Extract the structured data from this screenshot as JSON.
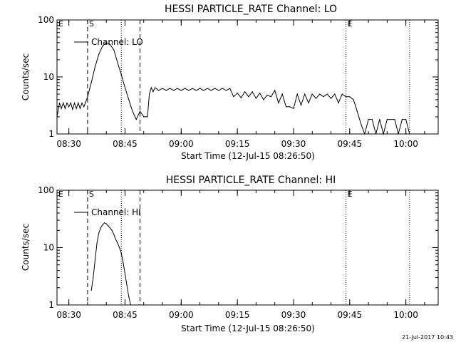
{
  "chart_data": [
    {
      "type": "line",
      "title": "HESSI PARTICLE_RATE Channel: LO",
      "xlabel": "Start Time (12-Jul-15 08:26:50)",
      "ylabel": "Counts/sec",
      "yscale": "log",
      "ylim": [
        1,
        100
      ],
      "xlim_minutes_after_0826_50": [
        0,
        101.8
      ],
      "xticks": [
        "08:30",
        "08:45",
        "09:00",
        "09:15",
        "09:30",
        "09:45",
        "10:00"
      ],
      "yticks": [
        "1",
        "10",
        "100"
      ],
      "legend": {
        "position": "top-left",
        "entries": [
          "Channel: LO"
        ]
      },
      "markers": [
        {
          "label": "E",
          "style": "solid",
          "at": "08:26:50"
        },
        {
          "label": "S",
          "style": "dashed",
          "at": "08:35"
        },
        {
          "label": "",
          "style": "dotted",
          "at": "08:44"
        },
        {
          "label": "",
          "style": "dashed",
          "at": "08:49"
        },
        {
          "label": "E",
          "style": "dotted",
          "at": "09:44"
        },
        {
          "label": "",
          "style": "dotted",
          "at": "10:01"
        }
      ],
      "series": [
        {
          "name": "Channel: LO",
          "x": [
            "08:26:50",
            "08:27:30",
            "08:28:00",
            "08:28:30",
            "08:29:00",
            "08:29:30",
            "08:30:00",
            "08:30:30",
            "08:31:00",
            "08:31:30",
            "08:32:00",
            "08:32:30",
            "08:33:00",
            "08:33:30",
            "08:34:00",
            "08:34:30",
            "08:35:00",
            "08:36:00",
            "08:37:00",
            "08:38:00",
            "08:39:00",
            "08:40:00",
            "08:41:00",
            "08:42:00",
            "08:43:00",
            "08:44:00",
            "08:45:00",
            "08:46:00",
            "08:47:00",
            "08:48:00",
            "08:49:00",
            "08:50:00",
            "08:51:00",
            "08:51:30",
            "08:52:00",
            "08:52:30",
            "08:53:00",
            "08:54:00",
            "08:55:00",
            "08:56:00",
            "08:57:00",
            "08:58:00",
            "08:59:00",
            "09:00:00",
            "09:01:00",
            "09:02:00",
            "09:03:00",
            "09:04:00",
            "09:05:00",
            "09:06:00",
            "09:07:00",
            "09:08:00",
            "09:09:00",
            "09:10:00",
            "09:11:00",
            "09:12:00",
            "09:13:00",
            "09:14:00",
            "09:15:00",
            "09:16:00",
            "09:17:00",
            "09:18:00",
            "09:19:00",
            "09:20:00",
            "09:21:00",
            "09:22:00",
            "09:23:00",
            "09:24:00",
            "09:25:00",
            "09:26:00",
            "09:27:00",
            "09:28:00",
            "09:29:00",
            "09:30:00",
            "09:31:00",
            "09:32:00",
            "09:33:00",
            "09:34:00",
            "09:35:00",
            "09:36:00",
            "09:37:00",
            "09:38:00",
            "09:39:00",
            "09:40:00",
            "09:41:00",
            "09:42:00",
            "09:43:00",
            "09:44:00",
            "09:45:00",
            "09:46:00",
            "09:47:00",
            "09:48:00",
            "09:49:00",
            "09:50:00",
            "09:51:00",
            "09:52:00",
            "09:53:00",
            "09:54:00",
            "09:55:00",
            "09:56:00",
            "09:57:00",
            "09:58:00",
            "09:59:00",
            "10:00:00",
            "10:01:00"
          ],
          "values": [
            2,
            3.5,
            2.8,
            3.5,
            2.8,
            3.5,
            3,
            3.5,
            2.7,
            3.5,
            2.8,
            3.5,
            2.8,
            3.5,
            3,
            3.6,
            4.5,
            8,
            15,
            25,
            35,
            40,
            37,
            30,
            18,
            11,
            6.5,
            4,
            2.5,
            1.8,
            2.5,
            2,
            2,
            5,
            6.5,
            5.5,
            6.5,
            5.8,
            6.3,
            5.8,
            6.3,
            5.8,
            6.3,
            5.8,
            6.3,
            5.8,
            6.3,
            5.8,
            6.3,
            5.8,
            6.3,
            5.8,
            6.3,
            5.8,
            6.3,
            5.8,
            6.3,
            4.5,
            5.2,
            4.3,
            5.5,
            4.5,
            5.5,
            4.2,
            5.2,
            4,
            4.8,
            4.5,
            5.8,
            3.5,
            5,
            3,
            3,
            2.8,
            5,
            3.2,
            5,
            3.5,
            5,
            4.2,
            5,
            4.5,
            5,
            4.2,
            5,
            3.5,
            5,
            4.5,
            4.5,
            4,
            2.5,
            1.5,
            1,
            1.8,
            1.8,
            1,
            1.8,
            1,
            1.8,
            1.8,
            1.8,
            1,
            1.8,
            1.8,
            1
          ]
        }
      ]
    },
    {
      "type": "line",
      "title": "HESSI PARTICLE_RATE Channel: HI",
      "xlabel": "Start Time (12-Jul-15 08:26:50)",
      "ylabel": "Counts/sec",
      "yscale": "log",
      "ylim": [
        1,
        100
      ],
      "xlim_minutes_after_0826_50": [
        0,
        101.8
      ],
      "xticks": [
        "08:30",
        "08:45",
        "09:00",
        "09:15",
        "09:30",
        "09:45",
        "10:00"
      ],
      "yticks": [
        "1",
        "10",
        "100"
      ],
      "legend": {
        "position": "top-left",
        "entries": [
          "Channel: HI"
        ]
      },
      "markers": [
        {
          "label": "E",
          "style": "solid",
          "at": "08:26:50"
        },
        {
          "label": "S",
          "style": "dashed",
          "at": "08:35"
        },
        {
          "label": "",
          "style": "dotted",
          "at": "08:44"
        },
        {
          "label": "",
          "style": "dashed",
          "at": "08:49"
        },
        {
          "label": "E",
          "style": "dotted",
          "at": "09:44"
        },
        {
          "label": "",
          "style": "dotted",
          "at": "10:01"
        }
      ],
      "series": [
        {
          "name": "Channel: HI",
          "x": [
            "08:36:00",
            "08:36:30",
            "08:37:00",
            "08:37:30",
            "08:38:00",
            "08:38:30",
            "08:39:00",
            "08:39:30",
            "08:40:00",
            "08:40:30",
            "08:41:00",
            "08:41:30",
            "08:42:00",
            "08:42:30",
            "08:43:00",
            "08:43:30",
            "08:44:00",
            "08:44:30",
            "08:45:00",
            "08:45:30",
            "08:46:00",
            "08:46:30"
          ],
          "values": [
            1.8,
            3,
            6,
            12,
            18,
            22,
            25,
            27,
            26,
            24,
            22,
            20,
            17,
            14,
            12,
            10,
            8,
            5.5,
            3.5,
            2.2,
            1.4,
            1
          ]
        }
      ]
    }
  ],
  "footer": {
    "timestamp": "21-Jul-2017 10:43"
  }
}
